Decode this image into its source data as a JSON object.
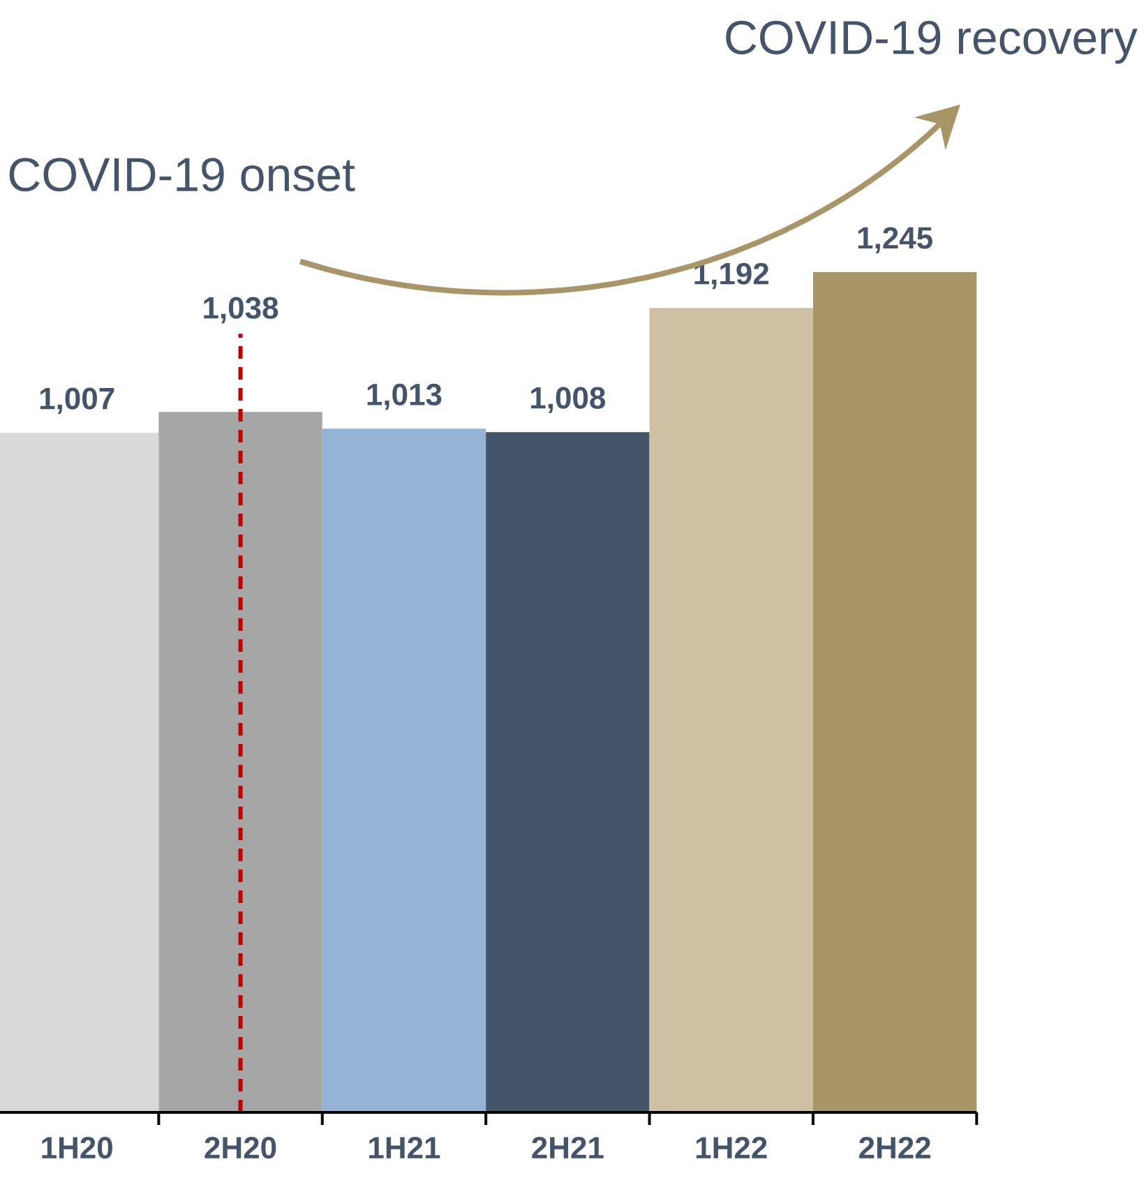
{
  "chart_data": {
    "type": "bar",
    "categories": [
      "1H20",
      "2H20",
      "1H21",
      "2H21",
      "1H22",
      "2H22"
    ],
    "values": [
      1007,
      1038,
      1013,
      1008,
      1192,
      1245
    ],
    "colors": [
      "#d9d9d9",
      "#a6a6a6",
      "#95b3d7",
      "#44546a",
      "#cfc0a4",
      "#a99668"
    ],
    "value_labels": [
      "1,007",
      "1,038",
      "1,013",
      "1,008",
      "1,192",
      "1,245"
    ],
    "ref_lines": [
      {
        "axis": "x",
        "value": "2H20",
        "color": "#c00000",
        "line_style": "dashed"
      }
    ],
    "annotations": [
      "COVID-19 onset",
      "COVID-19 recovery"
    ]
  }
}
